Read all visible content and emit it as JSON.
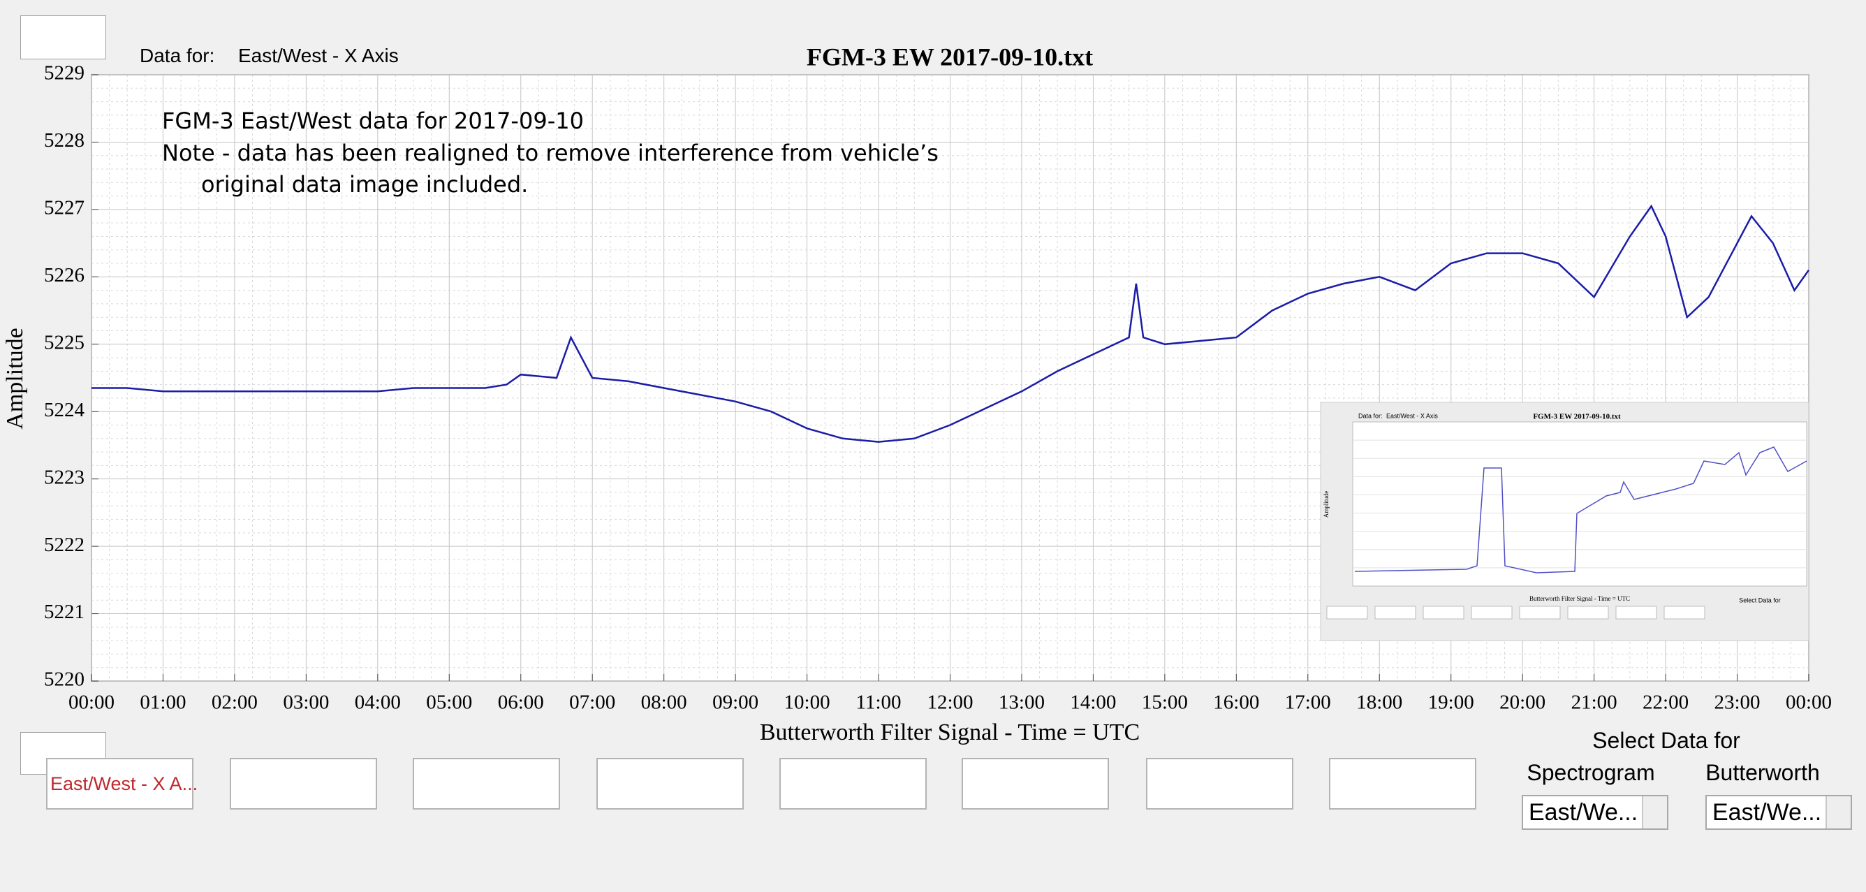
{
  "header": {
    "data_for_label": "Data for:",
    "data_for_value": "East/West - X Axis"
  },
  "chart_data": {
    "type": "line",
    "title": "FGM-3 EW 2017-09-10.txt",
    "xlabel": "Butterworth Filter Signal - Time = UTC",
    "ylabel": "Amplitude",
    "annotation": [
      "FGM-3 East/West data for 2017-09-10",
      "Note - data has been realigned to remove interference from vehicle’s",
      "original data image included."
    ],
    "x": [
      0,
      0.5,
      1,
      1.5,
      2,
      2.5,
      3,
      3.5,
      4,
      4.5,
      5,
      5.5,
      5.8,
      6,
      6.5,
      6.7,
      7,
      7.5,
      8,
      8.5,
      9,
      9.5,
      10,
      10.5,
      11,
      11.5,
      12,
      12.5,
      13,
      13.5,
      14,
      14.5,
      14.6,
      14.7,
      15,
      15.5,
      16,
      16.5,
      17,
      17.5,
      18,
      18.5,
      19,
      19.5,
      20,
      20.5,
      21,
      21.5,
      21.8,
      22,
      22.3,
      22.6,
      22.9,
      23.2,
      23.5,
      23.8,
      24
    ],
    "values": [
      5224.35,
      5224.35,
      5224.3,
      5224.3,
      5224.3,
      5224.3,
      5224.3,
      5224.3,
      5224.3,
      5224.35,
      5224.35,
      5224.35,
      5224.4,
      5224.55,
      5224.5,
      5225.1,
      5224.5,
      5224.45,
      5224.35,
      5224.25,
      5224.15,
      5224,
      5223.75,
      5223.6,
      5223.55,
      5223.6,
      5223.8,
      5224.05,
      5224.3,
      5224.6,
      5224.85,
      5225.1,
      5225.9,
      5225.1,
      5225,
      5225.05,
      5225.1,
      5225.5,
      5225.75,
      5225.9,
      5226,
      5225.8,
      5226.2,
      5226.35,
      5226.35,
      5226.2,
      5225.7,
      5226.6,
      5227.05,
      5226.6,
      5225.4,
      5225.7,
      5226.3,
      5226.9,
      5226.5,
      5225.8,
      5226.1
    ],
    "color": "#1c1ca6",
    "xlim": [
      0,
      24
    ],
    "xticks": [
      {
        "value": 0,
        "label": "00:00"
      },
      {
        "value": 1,
        "label": "01:00"
      },
      {
        "value": 2,
        "label": "02:00"
      },
      {
        "value": 3,
        "label": "03:00"
      },
      {
        "value": 4,
        "label": "04:00"
      },
      {
        "value": 5,
        "label": "05:00"
      },
      {
        "value": 6,
        "label": "06:00"
      },
      {
        "value": 7,
        "label": "07:00"
      },
      {
        "value": 8,
        "label": "08:00"
      },
      {
        "value": 9,
        "label": "09:00"
      },
      {
        "value": 10,
        "label": "10:00"
      },
      {
        "value": 11,
        "label": "11:00"
      },
      {
        "value": 12,
        "label": "12:00"
      },
      {
        "value": 13,
        "label": "13:00"
      },
      {
        "value": 14,
        "label": "14:00"
      },
      {
        "value": 15,
        "label": "15:00"
      },
      {
        "value": 16,
        "label": "16:00"
      },
      {
        "value": 17,
        "label": "17:00"
      },
      {
        "value": 18,
        "label": "18:00"
      },
      {
        "value": 19,
        "label": "19:00"
      },
      {
        "value": 20,
        "label": "20:00"
      },
      {
        "value": 21,
        "label": "21:00"
      },
      {
        "value": 22,
        "label": "22:00"
      },
      {
        "value": 23,
        "label": "23:00"
      },
      {
        "value": 24,
        "label": "00:00"
      }
    ],
    "ylim": [
      5220,
      5229
    ],
    "yticks": [
      5220,
      5221,
      5222,
      5223,
      5224,
      5225,
      5226,
      5227,
      5228,
      5229
    ],
    "grid": true,
    "minor_grid": true
  },
  "inset": {
    "data_for_label": "Data for:",
    "data_for_value": "East/West - X Axis",
    "title": "FGM-3 EW 2017-09-10.txt",
    "ylabel": "Amplitude",
    "xlabel": "Butterworth Filter Signal - Time = UTC",
    "select_label": "Select Data for"
  },
  "buttons": [
    "East/West - X A..."
  ],
  "selector": {
    "title": "Select Data for",
    "spectrogram_label": "Spectrogram",
    "butterworth_label": "Butterworth",
    "spectrogram_value": "East/We...",
    "butterworth_value": "East/We..."
  }
}
